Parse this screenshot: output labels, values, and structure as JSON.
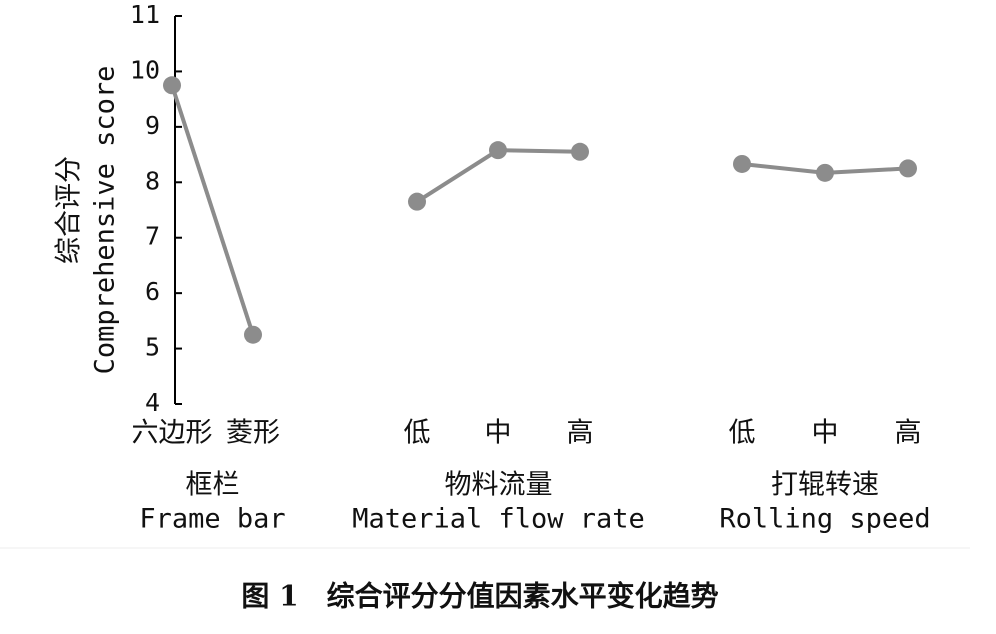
{
  "chart_data": {
    "type": "line",
    "y_label": "综合评分",
    "y_label_en": "Comprehensive score",
    "ylim": [
      4,
      11
    ],
    "yticks": [
      4,
      5,
      6,
      7,
      8,
      9,
      10,
      11
    ],
    "color": "#8c8c8c",
    "groups": [
      {
        "name": "框栏",
        "name_en": "Frame bar",
        "categories": [
          "六边形",
          "菱形"
        ],
        "values": [
          9.75,
          5.25
        ]
      },
      {
        "name": "物料流量",
        "name_en": "Material flow rate",
        "categories": [
          "低",
          "中",
          "高"
        ],
        "values": [
          7.65,
          8.58,
          8.55
        ]
      },
      {
        "name": "打辊转速",
        "name_en": "Rolling speed",
        "categories": [
          "低",
          "中",
          "高"
        ],
        "values": [
          8.33,
          8.17,
          8.25
        ]
      }
    ]
  },
  "caption": "图 1　综合评分分值因素水平变化趋势"
}
